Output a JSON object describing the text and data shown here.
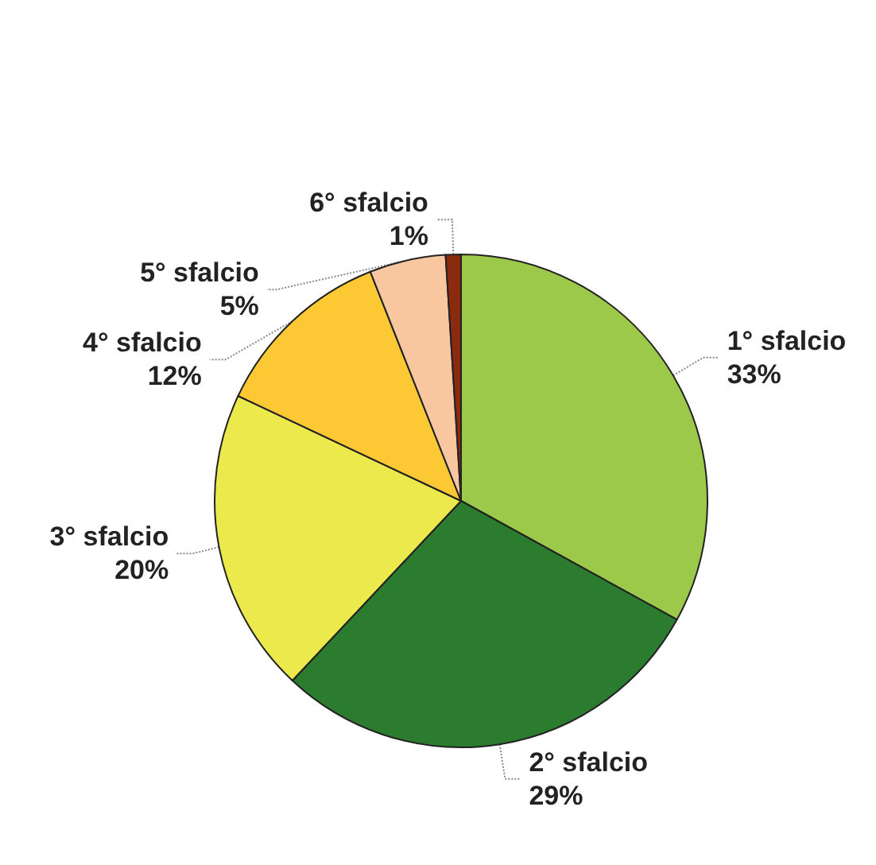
{
  "chart_data": {
    "type": "pie",
    "categories": [
      "1° sfalcio",
      "2° sfalcio",
      "3° sfalcio",
      "4° sfalcio",
      "5° sfalcio",
      "6° sfalcio"
    ],
    "values": [
      33,
      29,
      20,
      12,
      5,
      1
    ],
    "value_labels": [
      "33%",
      "29%",
      "20%",
      "12%",
      "5%",
      "1%"
    ],
    "colors": [
      "#9dc94a",
      "#2b7c2f",
      "#ece94c",
      "#fcc935",
      "#f8c79f",
      "#8a2b10"
    ],
    "legend": false
  }
}
